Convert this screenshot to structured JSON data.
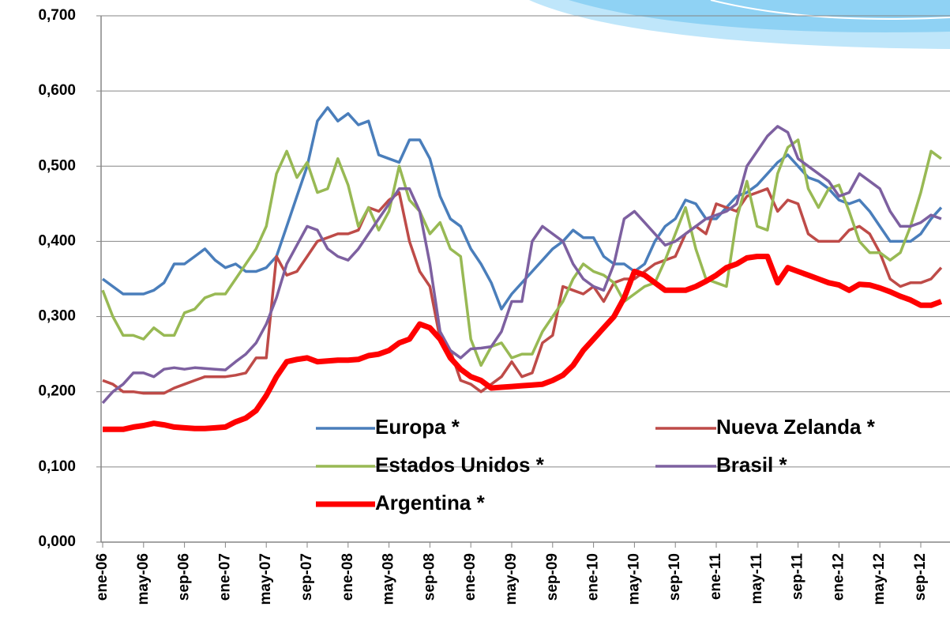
{
  "chart_data": {
    "type": "line",
    "categories": [
      "ene-06",
      null,
      null,
      null,
      "may-06",
      null,
      null,
      null,
      "sep-06",
      null,
      null,
      null,
      "ene-07",
      null,
      null,
      null,
      "may-07",
      null,
      null,
      null,
      "sep-07",
      null,
      null,
      null,
      "ene-08",
      null,
      null,
      null,
      "may-08",
      null,
      null,
      null,
      "sep-08",
      null,
      null,
      null,
      "ene-09",
      null,
      null,
      null,
      "may-09",
      null,
      null,
      null,
      "sep-09",
      null,
      null,
      null,
      "ene-10",
      null,
      null,
      null,
      "may-10",
      null,
      null,
      null,
      "sep-10",
      null,
      null,
      null,
      "ene-11",
      null,
      null,
      null,
      "may-11",
      null,
      null,
      null,
      "sep-11",
      null,
      null,
      null,
      "ene-12",
      null,
      null,
      null,
      "may-12",
      null,
      null,
      null,
      "sep-12",
      null,
      null
    ],
    "series": [
      {
        "name": "Europa *",
        "color": "#4a7ebb",
        "values": [
          0.35,
          0.34,
          0.33,
          0.33,
          0.33,
          0.335,
          0.345,
          0.37,
          0.37,
          0.38,
          0.39,
          0.375,
          0.365,
          0.37,
          0.36,
          0.36,
          0.365,
          0.38,
          0.42,
          0.46,
          0.5,
          0.56,
          0.578,
          0.56,
          0.57,
          0.555,
          0.56,
          0.515,
          0.51,
          0.505,
          0.535,
          0.535,
          0.51,
          0.46,
          0.43,
          0.42,
          0.39,
          0.37,
          0.345,
          0.31,
          0.33,
          0.345,
          0.36,
          0.375,
          0.39,
          0.4,
          0.415,
          0.405,
          0.405,
          0.38,
          0.37,
          0.37,
          0.36,
          0.37,
          0.4,
          0.42,
          0.43,
          0.455,
          0.45,
          0.43,
          0.43,
          0.445,
          0.46,
          0.465,
          0.475,
          0.49,
          0.505,
          0.515,
          0.5,
          0.485,
          0.48,
          0.47,
          0.455,
          0.45,
          0.455,
          0.44,
          0.42,
          0.4,
          0.4,
          0.4,
          0.41,
          0.43,
          0.445
        ]
      },
      {
        "name": "Nueva Zelanda *",
        "color": "#be4b48",
        "values": [
          0.215,
          0.21,
          0.2,
          0.2,
          0.198,
          0.198,
          0.198,
          0.205,
          0.21,
          0.215,
          0.22,
          0.22,
          0.22,
          0.222,
          0.225,
          0.245,
          0.245,
          0.38,
          0.355,
          0.36,
          0.38,
          0.4,
          0.405,
          0.41,
          0.41,
          0.415,
          0.445,
          0.44,
          0.455,
          0.465,
          0.4,
          0.36,
          0.34,
          0.27,
          0.255,
          0.215,
          0.21,
          0.2,
          0.21,
          0.22,
          0.24,
          0.22,
          0.225,
          0.265,
          0.275,
          0.34,
          0.335,
          0.33,
          0.34,
          0.32,
          0.345,
          0.35,
          0.35,
          0.36,
          0.37,
          0.375,
          0.38,
          0.41,
          0.42,
          0.41,
          0.45,
          0.445,
          0.44,
          0.46,
          0.465,
          0.47,
          0.44,
          0.455,
          0.45,
          0.41,
          0.4,
          0.4,
          0.4,
          0.415,
          0.42,
          0.41,
          0.385,
          0.35,
          0.34,
          0.345,
          0.345,
          0.35,
          0.365
        ]
      },
      {
        "name": "Estados Unidos *",
        "color": "#98b954",
        "values": [
          0.335,
          0.3,
          0.275,
          0.275,
          0.27,
          0.285,
          0.275,
          0.275,
          0.305,
          0.31,
          0.325,
          0.33,
          0.33,
          0.35,
          0.37,
          0.39,
          0.42,
          0.49,
          0.52,
          0.485,
          0.505,
          0.465,
          0.47,
          0.51,
          0.475,
          0.42,
          0.445,
          0.415,
          0.44,
          0.5,
          0.455,
          0.44,
          0.41,
          0.425,
          0.39,
          0.38,
          0.27,
          0.235,
          0.26,
          0.265,
          0.245,
          0.25,
          0.25,
          0.28,
          0.3,
          0.32,
          0.35,
          0.37,
          0.36,
          0.355,
          0.345,
          0.32,
          0.33,
          0.34,
          0.345,
          0.375,
          0.41,
          0.445,
          0.39,
          0.35,
          0.345,
          0.34,
          0.43,
          0.48,
          0.42,
          0.415,
          0.49,
          0.525,
          0.535,
          0.47,
          0.445,
          0.47,
          0.475,
          0.44,
          0.4,
          0.385,
          0.385,
          0.375,
          0.385,
          0.42,
          0.465,
          0.52,
          0.51
        ]
      },
      {
        "name": "Brasil *",
        "color": "#7d60a0",
        "values": [
          0.185,
          0.2,
          0.21,
          0.225,
          0.225,
          0.22,
          0.23,
          0.232,
          0.23,
          0.232,
          0.231,
          0.23,
          0.229,
          0.24,
          0.25,
          0.265,
          0.29,
          0.325,
          0.37,
          0.395,
          0.42,
          0.415,
          0.39,
          0.38,
          0.375,
          0.39,
          0.41,
          0.43,
          0.45,
          0.47,
          0.47,
          0.44,
          0.37,
          0.28,
          0.255,
          0.245,
          0.257,
          0.258,
          0.26,
          0.28,
          0.32,
          0.32,
          0.4,
          0.42,
          0.41,
          0.4,
          0.37,
          0.35,
          0.34,
          0.335,
          0.37,
          0.43,
          0.44,
          0.425,
          0.41,
          0.395,
          0.4,
          0.41,
          0.42,
          0.43,
          0.435,
          0.44,
          0.45,
          0.5,
          0.52,
          0.54,
          0.553,
          0.545,
          0.51,
          0.5,
          0.49,
          0.48,
          0.46,
          0.465,
          0.49,
          0.48,
          0.47,
          0.44,
          0.42,
          0.42,
          0.425,
          0.435,
          0.43
        ]
      },
      {
        "name": "Argentina *",
        "color": "#ff0000",
        "values": [
          0.15,
          0.15,
          0.15,
          0.153,
          0.155,
          0.158,
          0.156,
          0.153,
          0.152,
          0.151,
          0.151,
          0.152,
          0.153,
          0.16,
          0.165,
          0.175,
          0.195,
          0.22,
          0.24,
          0.243,
          0.245,
          0.24,
          0.241,
          0.242,
          0.242,
          0.243,
          0.248,
          0.25,
          0.255,
          0.265,
          0.27,
          0.29,
          0.285,
          0.27,
          0.245,
          0.23,
          0.22,
          0.215,
          0.205,
          0.206,
          0.207,
          0.208,
          0.209,
          0.21,
          0.215,
          0.222,
          0.235,
          0.255,
          0.27,
          0.285,
          0.3,
          0.325,
          0.36,
          0.355,
          0.345,
          0.335,
          0.335,
          0.335,
          0.34,
          0.347,
          0.355,
          0.365,
          0.37,
          0.378,
          0.38,
          0.38,
          0.345,
          0.365,
          0.36,
          0.355,
          0.35,
          0.345,
          0.342,
          0.335,
          0.343,
          0.342,
          0.338,
          0.333,
          0.327,
          0.322,
          0.315,
          0.315,
          0.32
        ]
      }
    ],
    "ylim": [
      0,
      0.7
    ],
    "yticks": [
      {
        "value": 0,
        "label": "0,000"
      },
      {
        "value": 0.1,
        "label": "0,100"
      },
      {
        "value": 0.2,
        "label": "0,200"
      },
      {
        "value": 0.3,
        "label": "0,300"
      },
      {
        "value": 0.4,
        "label": "0,400"
      },
      {
        "value": 0.5,
        "label": "0,500"
      },
      {
        "value": 0.6,
        "label": "0,600"
      },
      {
        "value": 0.7,
        "label": "0,700"
      }
    ],
    "grid": true
  }
}
